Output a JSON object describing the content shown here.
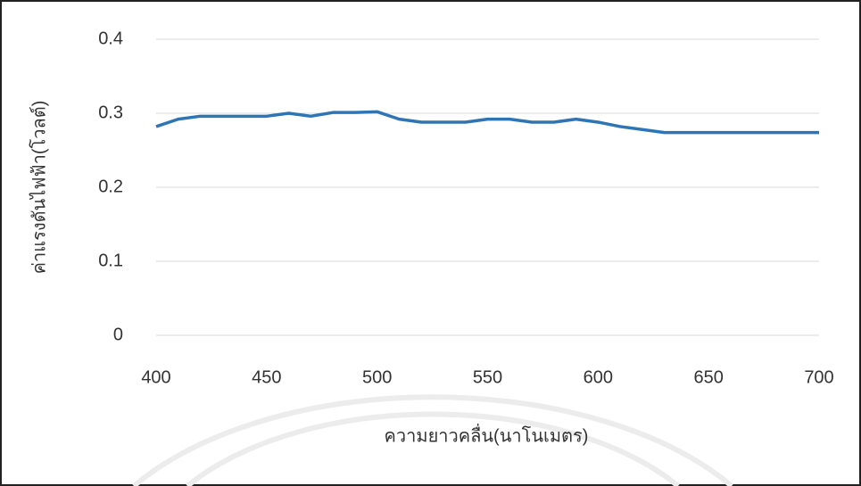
{
  "chart_data": {
    "type": "line",
    "x_label": "ความยาวคลื่น(นาโนเมตร)",
    "y_label": "ค่าแรงดันไฟฟ้า(โวลต์)",
    "x": [
      400,
      410,
      420,
      430,
      440,
      450,
      460,
      470,
      480,
      490,
      500,
      510,
      520,
      530,
      540,
      550,
      560,
      570,
      580,
      590,
      600,
      610,
      620,
      630,
      640,
      650,
      660,
      670,
      680,
      690,
      700
    ],
    "series": [
      {
        "color": "#2e75b6",
        "values": [
          0.282,
          0.292,
          0.296,
          0.296,
          0.296,
          0.296,
          0.3,
          0.296,
          0.301,
          0.301,
          0.302,
          0.292,
          0.288,
          0.288,
          0.288,
          0.292,
          0.292,
          0.288,
          0.288,
          0.292,
          0.288,
          0.282,
          0.278,
          0.274,
          0.274,
          0.274,
          0.274,
          0.274,
          0.274,
          0.274,
          0.274
        ]
      }
    ],
    "xlim": [
      400,
      700
    ],
    "xticks": [
      400,
      450,
      500,
      550,
      600,
      650,
      700
    ],
    "ylim": [
      0,
      0.4
    ],
    "yticks": [
      0,
      0.1,
      0.2,
      0.3,
      0.4
    ],
    "grid": true
  }
}
